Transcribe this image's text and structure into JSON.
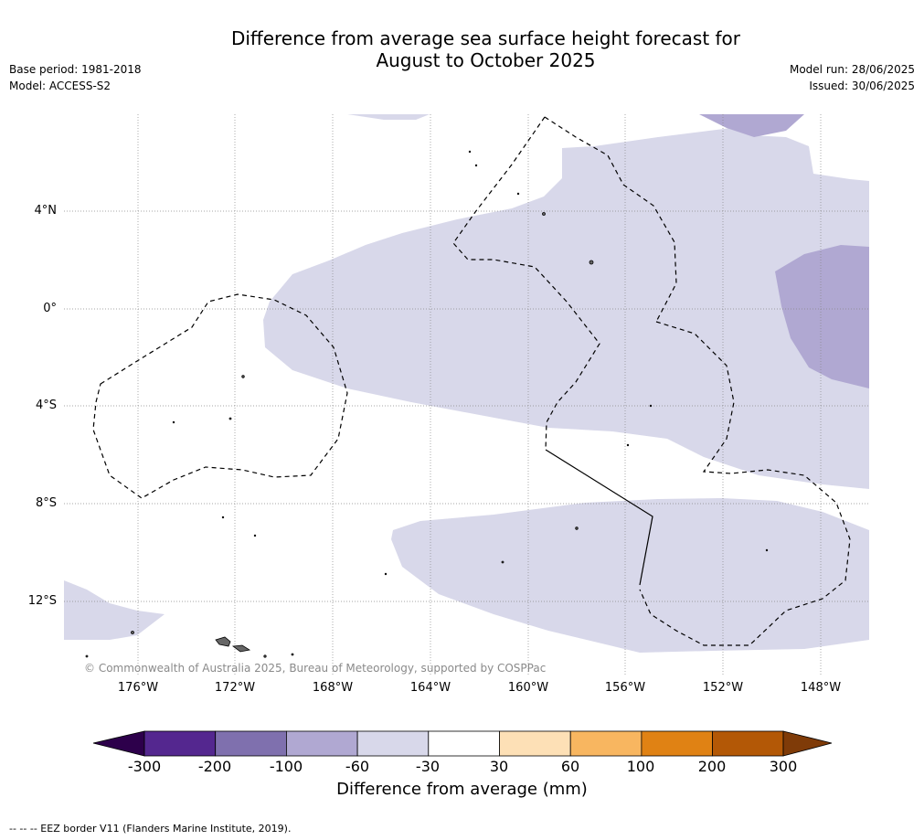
{
  "title_line1": "Difference from average sea surface height forecast for",
  "title_line2": "August to October 2025",
  "base_period": "Base period: 1981-2018",
  "model": "Model: ACCESS-S2",
  "model_run": "Model run: 28/06/2025",
  "issued": "Issued: 30/06/2025",
  "lat_labels": [
    "4°N",
    "0°",
    "4°S",
    "8°S",
    "12°S"
  ],
  "lon_labels": [
    "176°W",
    "172°W",
    "168°W",
    "164°W",
    "160°W",
    "156°W",
    "152°W",
    "148°W"
  ],
  "copyright": "© Commonwealth of Australia 2025, Bureau of Meteorology, supported by COSPPac",
  "colorbar": {
    "title": "Difference from average (mm)",
    "ticks": [
      "-300",
      "-200",
      "-100",
      "-60",
      "-30",
      "30",
      "60",
      "100",
      "200",
      "300"
    ],
    "colors": [
      "#54278f",
      "#7f70ae",
      "#b0a8d2",
      "#d8d8ea",
      "#ffffff",
      "#fde0b6",
      "#f8b660",
      "#e08214",
      "#b35806"
    ],
    "under_color": "#2d004b",
    "over_color": "#7f3b08"
  },
  "eez_note": "--  --  -- EEZ border V11 (Flanders Marine Institute, 2019)."
}
